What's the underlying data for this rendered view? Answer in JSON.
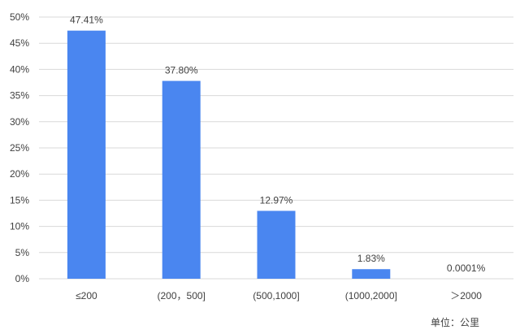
{
  "chart_data": {
    "type": "bar",
    "categories": [
      "≤200",
      "(200，500]",
      "(500,1000]",
      "(1000,2000]",
      "＞2000"
    ],
    "values": [
      47.41,
      37.8,
      12.97,
      1.83,
      0.0001
    ],
    "data_labels": [
      "47.41%",
      "37.80%",
      "12.97%",
      "1.83%",
      "0.0001%"
    ],
    "y_ticks": [
      "0%",
      "5%",
      "10%",
      "15%",
      "20%",
      "25%",
      "30%",
      "35%",
      "40%",
      "45%",
      "50%"
    ],
    "ylim": [
      0,
      50
    ],
    "grid": true,
    "bar_color": "#4a86f0",
    "unit_note": "单位：公里"
  }
}
